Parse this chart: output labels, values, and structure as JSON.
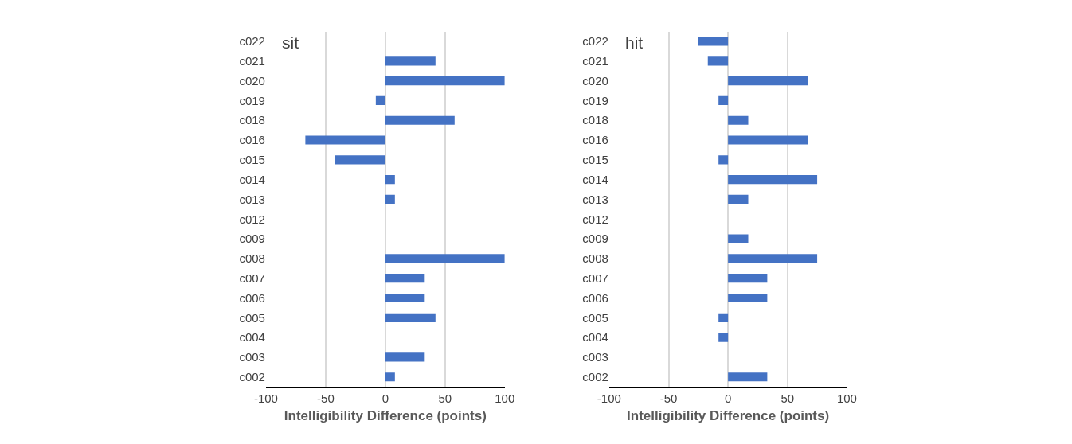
{
  "chart_data": [
    {
      "type": "bar",
      "orientation": "horizontal",
      "title": "sit",
      "xlabel": "Intelligibility Difference (points)",
      "categories": [
        "c022",
        "c021",
        "c020",
        "c019",
        "c018",
        "c016",
        "c015",
        "c014",
        "c013",
        "c012",
        "c009",
        "c008",
        "c007",
        "c006",
        "c005",
        "c004",
        "c003",
        "c002"
      ],
      "values": [
        0,
        42,
        100,
        -8,
        58,
        -67,
        -42,
        8,
        8,
        0,
        0,
        100,
        33,
        33,
        42,
        0,
        33,
        8
      ],
      "color": "#4472c4",
      "xlim": [
        -100,
        100
      ],
      "xticks": [
        -100,
        -50,
        0,
        50,
        100
      ],
      "grid": "x"
    },
    {
      "type": "bar",
      "orientation": "horizontal",
      "title": "hit",
      "xlabel": "Intelligibility Difference (points)",
      "categories": [
        "c022",
        "c021",
        "c020",
        "c019",
        "c018",
        "c016",
        "c015",
        "c014",
        "c013",
        "c012",
        "c009",
        "c008",
        "c007",
        "c006",
        "c005",
        "c004",
        "c003",
        "c002"
      ],
      "values": [
        -25,
        -17,
        67,
        -8,
        17,
        67,
        -8,
        75,
        17,
        0,
        17,
        75,
        33,
        33,
        -8,
        -8,
        0,
        33
      ],
      "color": "#4472c4",
      "xlim": [
        -100,
        100
      ],
      "xticks": [
        -100,
        -50,
        0,
        50,
        100
      ],
      "grid": "x"
    }
  ]
}
